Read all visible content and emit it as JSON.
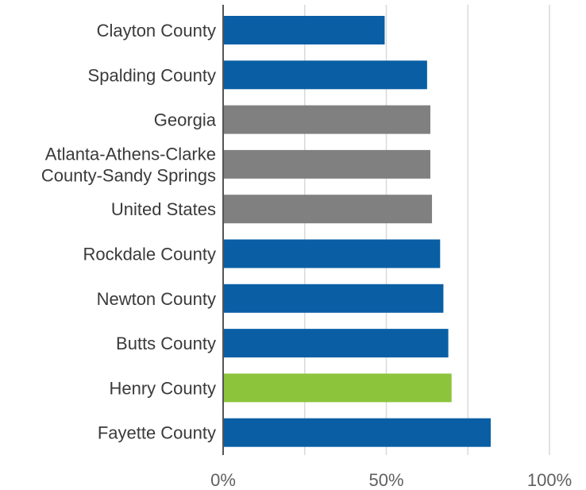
{
  "chart_data": {
    "type": "bar",
    "orientation": "horizontal",
    "title": "",
    "xlabel": "",
    "ylabel": "",
    "categories": [
      [
        "Clayton County"
      ],
      [
        "Spalding County"
      ],
      [
        "Georgia"
      ],
      [
        "Atlanta-Athens-Clarke",
        "County-Sandy Springs"
      ],
      [
        "United States"
      ],
      [
        "Rockdale County"
      ],
      [
        "Newton County"
      ],
      [
        "Butts County"
      ],
      [
        "Henry County"
      ],
      [
        "Fayette County"
      ]
    ],
    "values": [
      0.495,
      0.625,
      0.635,
      0.635,
      0.64,
      0.665,
      0.675,
      0.69,
      0.7,
      0.82
    ],
    "bar_colors": [
      "#0a5fa4",
      "#0a5fa4",
      "#808080",
      "#808080",
      "#808080",
      "#0a5fa4",
      "#0a5fa4",
      "#0a5fa4",
      "#8cc43c",
      "#0a5fa4"
    ],
    "xlim": [
      0,
      1.0
    ],
    "x_ticks": [
      0,
      0.5,
      1.0
    ],
    "x_tick_labels": [
      "0%",
      "50%",
      "100%"
    ],
    "minor_gridlines": [
      0.25,
      0.75
    ],
    "grid": true,
    "legend": "none"
  }
}
